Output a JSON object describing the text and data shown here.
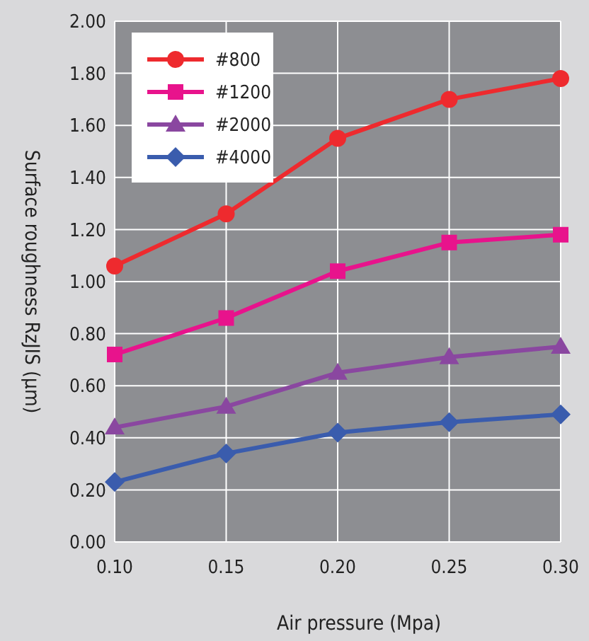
{
  "chart_data": {
    "type": "line",
    "xlabel": "Air pressure (Mpa)",
    "ylabel": "Surface roughness RzJIS (μm)",
    "x": [
      0.1,
      0.15,
      0.2,
      0.25,
      0.3
    ],
    "xlim": [
      0.1,
      0.3
    ],
    "xticks": [
      {
        "value": 0.1,
        "label": "0.10"
      },
      {
        "value": 0.15,
        "label": "0.15"
      },
      {
        "value": 0.2,
        "label": "0.20"
      },
      {
        "value": 0.25,
        "label": "0.25"
      },
      {
        "value": 0.3,
        "label": "0.30"
      }
    ],
    "ylim": [
      0,
      2
    ],
    "yticks": [
      {
        "value": 0,
        "label": "0.00"
      },
      {
        "value": 0.2,
        "label": "0.20"
      },
      {
        "value": 0.4,
        "label": "0.40"
      },
      {
        "value": 0.6,
        "label": "0.60"
      },
      {
        "value": 0.8,
        "label": "0.80"
      },
      {
        "value": 1,
        "label": "1.00"
      },
      {
        "value": 1.2,
        "label": "1.20"
      },
      {
        "value": 1.4,
        "label": "1.40"
      },
      {
        "value": 1.6,
        "label": "1.60"
      },
      {
        "value": 1.8,
        "label": "1.80"
      },
      {
        "value": 2,
        "label": "2.00"
      }
    ],
    "grid": true,
    "legend": "top left",
    "series": [
      {
        "name": "#800",
        "color": "#ee2a2e",
        "marker": "circle",
        "values": [
          1.06,
          1.26,
          1.55,
          1.7,
          1.78
        ]
      },
      {
        "name": "#1200",
        "color": "#e8138c",
        "marker": "square",
        "values": [
          0.72,
          0.86,
          1.04,
          1.15,
          1.18
        ]
      },
      {
        "name": "#2000",
        "color": "#8a47a0",
        "marker": "triangle",
        "values": [
          0.44,
          0.52,
          0.65,
          0.71,
          0.75
        ]
      },
      {
        "name": "#4000",
        "color": "#3a5cad",
        "marker": "diamond",
        "values": [
          0.23,
          0.34,
          0.42,
          0.46,
          0.49
        ]
      }
    ]
  }
}
